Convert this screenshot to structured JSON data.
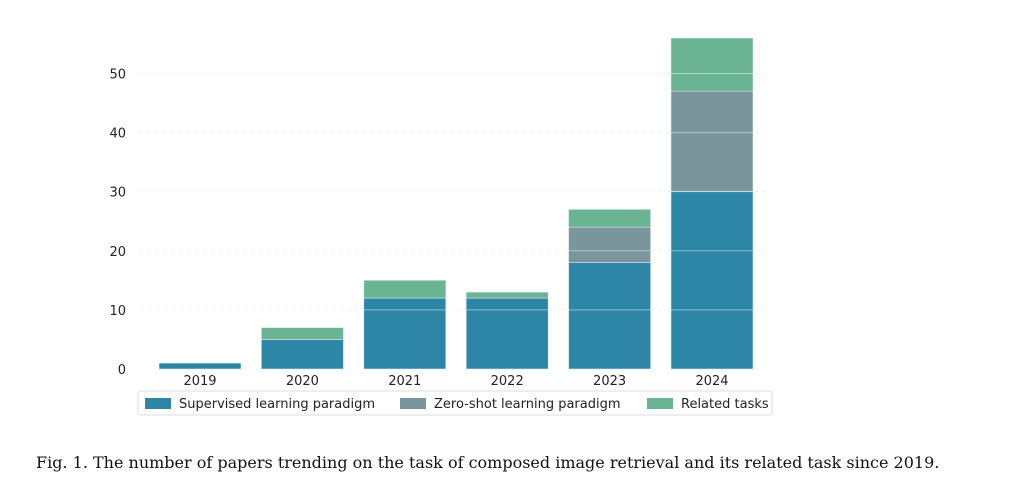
{
  "chart_data": {
    "type": "bar",
    "stacked": true,
    "categories": [
      "2019",
      "2020",
      "2021",
      "2022",
      "2023",
      "2024"
    ],
    "series": [
      {
        "name": "Supervised learning paradigm",
        "values": [
          1,
          5,
          12,
          12,
          18,
          30
        ],
        "color": "#2e86a7"
      },
      {
        "name": "Zero-shot learning paradigm",
        "values": [
          0,
          0,
          0,
          0,
          6,
          17
        ],
        "color": "#7a959c"
      },
      {
        "name": "Related tasks",
        "values": [
          0,
          2,
          3,
          1,
          3,
          9
        ],
        "color": "#6ab494"
      }
    ],
    "yticks": [
      0,
      10,
      20,
      30,
      40,
      50
    ],
    "ylim": [
      0,
      56
    ],
    "grid": true,
    "legend_position": "bottom"
  },
  "caption": "Fig. 1.  The number of papers trending on the task of composed image retrieval and its related task since 2019."
}
